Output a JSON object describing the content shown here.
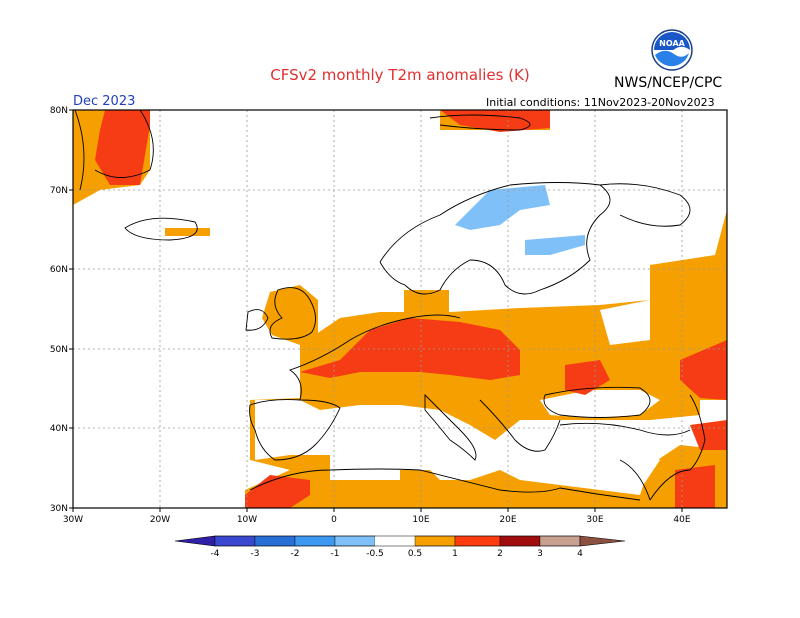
{
  "header": {
    "title": "CFSv2 monthly T2m anomalies (K)",
    "organization": "NWS/NCEP/CPC",
    "logo_text": "NOAA",
    "valid_month": "Dec 2023",
    "initial_conditions": "Initial conditions: 11Nov2023-20Nov2023"
  },
  "axes": {
    "lon_labels": [
      "30W",
      "20W",
      "10W",
      "0",
      "10E",
      "20E",
      "30E",
      "40E"
    ],
    "lat_labels": [
      "80N",
      "70N",
      "60N",
      "50N",
      "40N",
      "30N"
    ]
  },
  "legend": {
    "labels": [
      "-4",
      "-3",
      "-2",
      "-1",
      "-0.5",
      "0.5",
      "1",
      "2",
      "3",
      "4"
    ],
    "colors": [
      "#3020a8",
      "#3a48d0",
      "#2870d8",
      "#3c98f0",
      "#80c0f8",
      "#ffffff",
      "#f5a000",
      "#ff3c10",
      "#a00c0c",
      "#c8a090",
      "#8c5040"
    ]
  },
  "colors": {
    "orange": "#f5a000",
    "red": "#f53c14",
    "light_blue": "#80c0f8",
    "coast": "#000000",
    "grid": "#888888"
  }
}
